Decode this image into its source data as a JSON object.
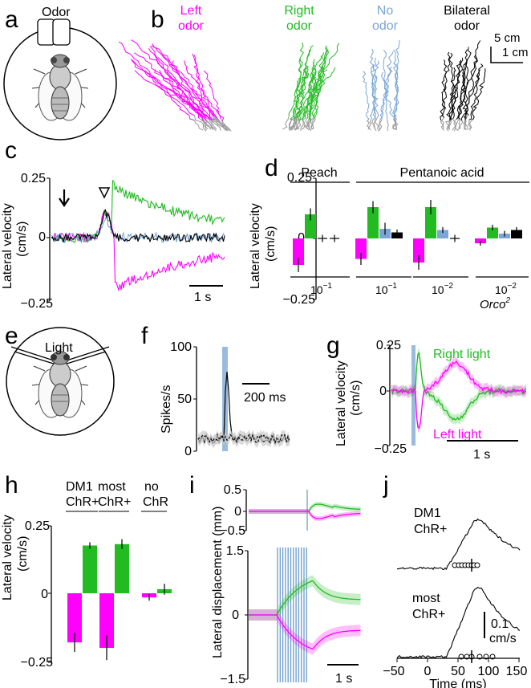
{
  "colors": {
    "left": "#ff00ff",
    "right": "#22bb22",
    "none": "#7aa6d6",
    "bilateral": "#000000",
    "ctrl": "#999999",
    "light": "#99bbdd"
  },
  "panels": {
    "a": {
      "label": "a",
      "odor": "Odor"
    },
    "b": {
      "label": "b",
      "left1": "Left",
      "left2": "odor",
      "right1": "Right",
      "right2": "odor",
      "no1": "No",
      "no2": "odor",
      "bi1": "Bilateral",
      "bi2": "odor",
      "scale1": "5 cm",
      "scale2": "1 cm"
    },
    "c": {
      "label": "c",
      "ylabel1": "Lateral velocity",
      "ylabel2": "(cm/s)",
      "ytop": "0.25",
      "ymid": "0",
      "ybot": "−0.25",
      "scale": "1 s"
    },
    "d": {
      "label": "d",
      "ylabel1": "Lateral velocity",
      "ylabel2": "(cm/s)",
      "ytop": "0.25",
      "ymid": "0",
      "ybot": "−0.25",
      "grp1": "Peach",
      "grp2": "Pentanoic acid",
      "conc": [
        "10",
        "10",
        "10",
        "10"
      ],
      "exp": [
        "−1",
        "−1",
        "−2",
        "−2"
      ],
      "orco": "Orco",
      "orco_sup": "2"
    },
    "e": {
      "label": "e",
      "light": "Light"
    },
    "f": {
      "label": "f",
      "ylabel": "Spikes/s",
      "ytop": "100",
      "ymid": "50",
      "ybot": "0",
      "scale": "200 ms"
    },
    "g": {
      "label": "g",
      "ylabel1": "Lateral velocity",
      "ylabel2": "(cm/s)",
      "ytop": "0.25",
      "ymid": "0",
      "ybot": "−0.25",
      "right": "Right light",
      "left": "Left light",
      "scale": "1 s"
    },
    "h": {
      "label": "h",
      "ylabel1": "Lateral velocity",
      "ylabel2": "(cm/s)",
      "ytop": "0.25",
      "ymid": "0",
      "ybot": "−0.25",
      "g1a": "DM1",
      "g1b": "ChR+",
      "g2a": "most",
      "g2b": "ChR+",
      "g3a": "no",
      "g3b": "ChR"
    },
    "i": {
      "label": "i",
      "ylabel": "Lateral displacement (mm)",
      "t1": "0.5",
      "t2": "0",
      "t3": "−0.5",
      "b1": "1.5",
      "b2": "0",
      "b3": "−1.5",
      "scale": "1 s"
    },
    "j": {
      "label": "j",
      "top1": "DM1",
      "top2": "ChR+",
      "bot1": "most",
      "bot2": "ChR+",
      "scale1": "0.1",
      "scale2": "cm/s",
      "xt": [
        "−50",
        "0",
        "50",
        "100",
        "150"
      ],
      "xlabel": "Time (ms)"
    }
  },
  "chart_data": [
    {
      "panel": "d",
      "type": "bar",
      "title": "",
      "ylabel": "Lateral velocity (cm/s)",
      "ylim": [
        -0.25,
        0.25
      ],
      "groups": [
        "Peach 10^-1",
        "Pentanoic acid 10^-1",
        "Pentanoic acid 10^-2",
        "Pentanoic acid 10^-2 Orco2"
      ],
      "series": [
        {
          "name": "Left odor",
          "values": [
            -0.11,
            -0.085,
            -0.1,
            -0.02
          ],
          "err": [
            0.03,
            0.025,
            0.03,
            0.01
          ]
        },
        {
          "name": "Right odor",
          "values": [
            0.1,
            0.13,
            0.13,
            0.045
          ],
          "err": [
            0.025,
            0.025,
            0.03,
            0.012
          ]
        },
        {
          "name": "No odor",
          "values": [
            0.0,
            0.04,
            0.035,
            0.02
          ],
          "err": [
            0.015,
            0.025,
            0.012,
            0.012
          ]
        },
        {
          "name": "Bilateral odor",
          "values": [
            0.0,
            0.025,
            0.0,
            0.035
          ],
          "err": [
            0.015,
            0.012,
            0.015,
            0.012
          ]
        }
      ]
    },
    {
      "panel": "h",
      "type": "bar",
      "title": "",
      "ylabel": "Lateral velocity (cm/s)",
      "ylim": [
        -0.25,
        0.25
      ],
      "groups": [
        "DM1 ChR+",
        "most ChR+",
        "no ChR"
      ],
      "series": [
        {
          "name": "Left light",
          "values": [
            -0.18,
            -0.2,
            -0.015
          ],
          "err": [
            0.035,
            0.045,
            0.012
          ]
        },
        {
          "name": "Right light",
          "values": [
            0.175,
            0.18,
            0.015
          ],
          "err": [
            0.012,
            0.018,
            0.02
          ]
        }
      ]
    }
  ]
}
